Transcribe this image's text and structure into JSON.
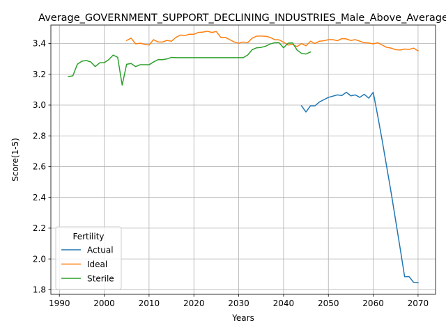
{
  "chart_data": {
    "type": "line",
    "title": "Average_GOVERNMENT_SUPPORT_DECLINING_INDUSTRIES_Male_Above_Average",
    "xlabel": "Years",
    "ylabel": "Score(1-5)",
    "xlim": [
      1988.1,
      2073.9
    ],
    "ylim": [
      1.77,
      3.52
    ],
    "xticks": [
      1990,
      2000,
      2010,
      2020,
      2030,
      2040,
      2050,
      2060,
      2070
    ],
    "yticks": [
      1.8,
      2.0,
      2.2,
      2.4,
      2.6,
      2.8,
      3.0,
      3.2,
      3.4
    ],
    "grid": true,
    "legend": {
      "title": "Fertility",
      "position": "lower-left"
    },
    "series": [
      {
        "name": "Actual",
        "color": "#1f77b4",
        "x": [
          2044,
          2045,
          2046,
          2047,
          2048,
          2049,
          2050,
          2051,
          2052,
          2053,
          2054,
          2055,
          2056,
          2057,
          2058,
          2059,
          2060,
          2061,
          2062,
          2063,
          2064,
          2065,
          2066,
          2067,
          2068,
          2069,
          2070
        ],
        "y": [
          2.995,
          2.955,
          2.995,
          2.995,
          3.02,
          3.035,
          3.05,
          3.058,
          3.066,
          3.062,
          3.083,
          3.06,
          3.066,
          3.05,
          3.07,
          3.045,
          3.083,
          2.93,
          2.77,
          2.6,
          2.43,
          2.25,
          2.07,
          1.885,
          1.885,
          1.848,
          1.845
        ]
      },
      {
        "name": "Ideal",
        "color": "#ff7f0e",
        "x": [
          2005,
          2006,
          2007,
          2008,
          2009,
          2010,
          2011,
          2012,
          2013,
          2014,
          2015,
          2016,
          2017,
          2018,
          2019,
          2020,
          2021,
          2022,
          2023,
          2024,
          2025,
          2026,
          2027,
          2028,
          2029,
          2030,
          2031,
          2032,
          2033,
          2034,
          2035,
          2036,
          2037,
          2038,
          2039,
          2040,
          2041,
          2042,
          2043,
          2044,
          2045,
          2046,
          2047,
          2048,
          2049,
          2050,
          2051,
          2052,
          2053,
          2054,
          2055,
          2056,
          2057,
          2058,
          2059,
          2060,
          2061,
          2062,
          2063,
          2064,
          2065,
          2066,
          2067,
          2068,
          2069,
          2070
        ],
        "y": [
          3.42,
          3.435,
          3.398,
          3.402,
          3.395,
          3.39,
          3.425,
          3.41,
          3.41,
          3.42,
          3.415,
          3.44,
          3.455,
          3.452,
          3.46,
          3.46,
          3.472,
          3.474,
          3.48,
          3.472,
          3.478,
          3.44,
          3.44,
          3.425,
          3.41,
          3.402,
          3.41,
          3.405,
          3.435,
          3.448,
          3.448,
          3.447,
          3.44,
          3.425,
          3.424,
          3.408,
          3.39,
          3.395,
          3.38,
          3.4,
          3.385,
          3.415,
          3.4,
          3.415,
          3.418,
          3.425,
          3.425,
          3.418,
          3.432,
          3.43,
          3.42,
          3.425,
          3.415,
          3.405,
          3.403,
          3.398,
          3.405,
          3.39,
          3.375,
          3.37,
          3.36,
          3.358,
          3.364,
          3.362,
          3.37,
          3.352
        ]
      },
      {
        "name": "Sterile",
        "color": "#2ca02c",
        "x": [
          1992,
          1993,
          1994,
          1995,
          1996,
          1997,
          1998,
          1999,
          2000,
          2001,
          2002,
          2003,
          2004,
          2005,
          2006,
          2007,
          2008,
          2009,
          2010,
          2011,
          2012,
          2013,
          2014,
          2015,
          2016,
          2017,
          2018,
          2019,
          2020,
          2021,
          2022,
          2023,
          2024,
          2025,
          2026,
          2027,
          2028,
          2029,
          2030,
          2031,
          2032,
          2033,
          2034,
          2035,
          2036,
          2037,
          2038,
          2039,
          2040,
          2041,
          2042,
          2043,
          2044,
          2045,
          2046
        ],
        "y": [
          3.185,
          3.19,
          3.265,
          3.285,
          3.29,
          3.28,
          3.25,
          3.275,
          3.275,
          3.295,
          3.325,
          3.31,
          3.13,
          3.265,
          3.27,
          3.25,
          3.262,
          3.262,
          3.262,
          3.28,
          3.295,
          3.295,
          3.3,
          3.31,
          3.308,
          3.308,
          3.308,
          3.308,
          3.308,
          3.308,
          3.308,
          3.308,
          3.308,
          3.308,
          3.308,
          3.308,
          3.308,
          3.308,
          3.308,
          3.308,
          3.325,
          3.36,
          3.372,
          3.375,
          3.382,
          3.397,
          3.405,
          3.405,
          3.372,
          3.402,
          3.404,
          3.358,
          3.336,
          3.332,
          3.345
        ]
      }
    ]
  }
}
